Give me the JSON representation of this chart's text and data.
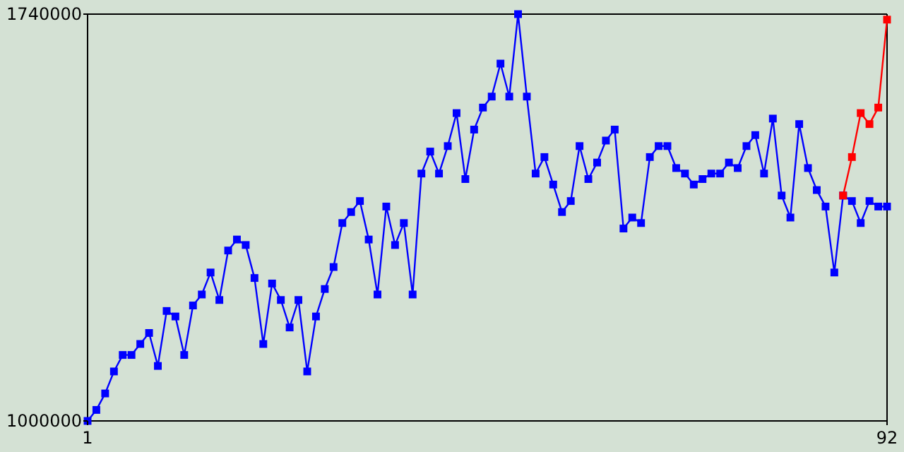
{
  "chart_data": {
    "type": "line",
    "x": [
      1,
      2,
      3,
      4,
      5,
      6,
      7,
      8,
      9,
      10,
      11,
      12,
      13,
      14,
      15,
      16,
      17,
      18,
      19,
      20,
      21,
      22,
      23,
      24,
      25,
      26,
      27,
      28,
      29,
      30,
      31,
      32,
      33,
      34,
      35,
      36,
      37,
      38,
      39,
      40,
      41,
      42,
      43,
      44,
      45,
      46,
      47,
      48,
      49,
      50,
      51,
      52,
      53,
      54,
      55,
      56,
      57,
      58,
      59,
      60,
      61,
      62,
      63,
      64,
      65,
      66,
      67,
      68,
      69,
      70,
      71,
      72,
      73,
      74,
      75,
      76,
      77,
      78,
      79,
      80,
      81,
      82,
      83,
      84,
      85,
      86,
      87,
      88,
      89,
      90,
      91,
      92
    ],
    "series": [
      {
        "color": "#0000ff",
        "values": [
          1000000,
          1020000,
          1050000,
          1090000,
          1120000,
          1120000,
          1140000,
          1160000,
          1100000,
          1200000,
          1190000,
          1120000,
          1210000,
          1230000,
          1270000,
          1220000,
          1310000,
          1330000,
          1320000,
          1260000,
          1140000,
          1250000,
          1220000,
          1170000,
          1220000,
          1090000,
          1190000,
          1240000,
          1280000,
          1360000,
          1380000,
          1400000,
          1330000,
          1230000,
          1390000,
          1320000,
          1360000,
          1230000,
          1450000,
          1490000,
          1450000,
          1500000,
          1560000,
          1440000,
          1530000,
          1570000,
          1590000,
          1650000,
          1590000,
          1740000,
          1590000,
          1450000,
          1480000,
          1430000,
          1380000,
          1400000,
          1500000,
          1440000,
          1470000,
          1510000,
          1530000,
          1350000,
          1370000,
          1360000,
          1480000,
          1500000,
          1500000,
          1460000,
          1450000,
          1430000,
          1440000,
          1450000,
          1450000,
          1470000,
          1460000,
          1500000,
          1520000,
          1450000,
          1550000,
          1410000,
          1370000,
          1540000,
          1460000,
          1420000,
          1390000,
          1270000,
          1410000,
          1400000,
          1360000,
          1400000,
          1390000,
          1390000
        ]
      },
      {
        "color": "#ff0000",
        "x": [
          87,
          88,
          89,
          90,
          91,
          92
        ],
        "values": [
          1410000,
          1480000,
          1560000,
          1540000,
          1570000,
          1730000
        ]
      }
    ],
    "xlim": [
      1,
      92
    ],
    "xticks": [
      1,
      92
    ],
    "ylim": [
      1000000,
      1740000
    ],
    "yticks": [
      1000000,
      1740000
    ],
    "marker": "square",
    "line_style": "solid"
  }
}
